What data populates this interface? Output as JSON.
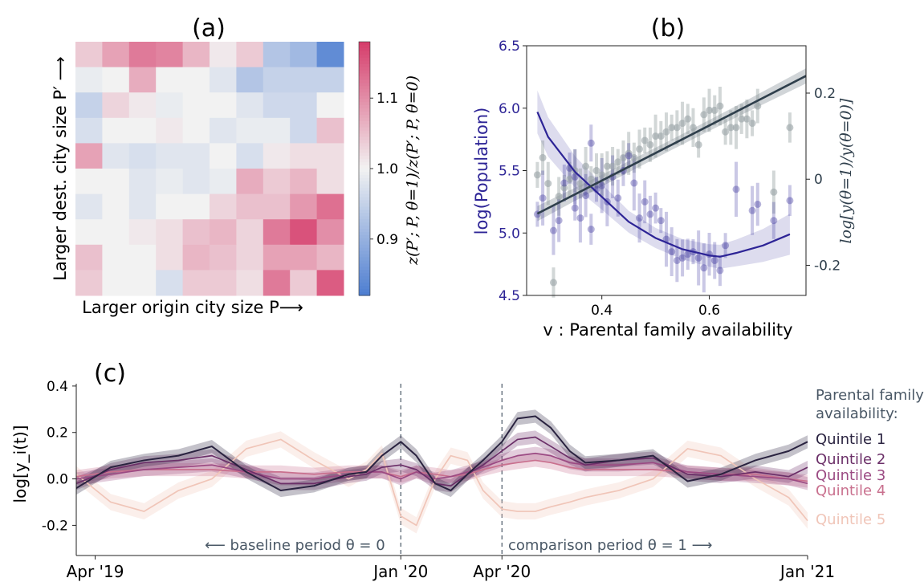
{
  "chart_data": [
    {
      "panel": "(a)",
      "type": "heatmap",
      "title": "(a)",
      "xlabel": "Larger origin city size P⟶",
      "ylabel": "Larger dest. city size P′ ⟶",
      "colorbar": {
        "label": "z(P′; P, θ=1)/z(P′; P, θ=0)",
        "range": [
          0.82,
          1.18
        ],
        "ticks": [
          0.9,
          1.0,
          1.1
        ],
        "tick_labels": [
          "0.9",
          "1.0",
          "1.1"
        ],
        "low_color": "#4f7fd1",
        "mid_color": "#f2f2f2",
        "high_color": "#d63e6c"
      },
      "rows_top_to_bottom": [
        [
          1.04,
          1.08,
          1.12,
          1.11,
          1.06,
          1.01,
          1.04,
          0.93,
          0.91,
          0.84
        ],
        [
          0.99,
          1.0,
          1.07,
          1.0,
          1.0,
          0.98,
          0.93,
          0.95,
          0.95,
          0.95
        ],
        [
          0.95,
          1.03,
          1.01,
          0.99,
          1.0,
          1.0,
          0.98,
          0.96,
          0.96,
          1.0
        ],
        [
          0.97,
          1.0,
          1.0,
          1.01,
          1.0,
          0.98,
          0.99,
          0.99,
          0.96,
          1.05
        ],
        [
          1.08,
          0.98,
          0.97,
          0.98,
          0.98,
          1.0,
          0.97,
          1.01,
          1.02,
          1.02
        ],
        [
          1.0,
          1.0,
          0.98,
          0.99,
          0.98,
          0.99,
          1.07,
          1.04,
          1.06,
          1.02
        ],
        [
          0.98,
          1.0,
          0.98,
          1.0,
          1.0,
          1.03,
          1.05,
          1.05,
          1.09,
          1.13
        ],
        [
          1.0,
          1.0,
          1.01,
          1.02,
          1.05,
          1.06,
          1.03,
          1.12,
          1.16,
          1.1
        ],
        [
          1.05,
          1.0,
          1.0,
          1.02,
          1.06,
          1.05,
          1.03,
          1.08,
          1.08,
          1.06
        ],
        [
          1.04,
          1.0,
          1.0,
          0.97,
          1.04,
          1.04,
          1.02,
          1.12,
          1.04,
          1.15
        ]
      ]
    },
    {
      "panel": "(b)",
      "type": "scatter",
      "title": "(b)",
      "xlabel": "v : Parental family availability",
      "ylabel_left": "log(Population)",
      "ylabel_right": "log[y(θ=1)/y(θ=0)]",
      "xlim": [
        0.26,
        0.78
      ],
      "xticks": [
        0.4,
        0.6
      ],
      "ylim_left": [
        4.5,
        6.5
      ],
      "yticks_left": [
        4.5,
        5.0,
        5.5,
        6.0,
        6.5
      ],
      "ylim_right": [
        -0.27,
        0.31
      ],
      "yticks_right": [
        -0.2,
        0,
        0.2
      ],
      "ytick_labels_right": [
        "-0.2",
        "0",
        "0.2"
      ],
      "population_color": "#2d2496",
      "ratio_color": "#2f3f4c",
      "series": [
        {
          "axis": "left",
          "points": [
            [
              0.28,
              5.15
            ],
            [
              0.29,
              5.28
            ],
            [
              0.31,
              5.02
            ],
            [
              0.32,
              5.1
            ],
            [
              0.33,
              5.4
            ],
            [
              0.34,
              5.52
            ],
            [
              0.35,
              5.2
            ],
            [
              0.35,
              5.45
            ],
            [
              0.36,
              5.12
            ],
            [
              0.37,
              5.3
            ],
            [
              0.38,
              5.72
            ],
            [
              0.38,
              5.03
            ],
            [
              0.39,
              5.35
            ],
            [
              0.4,
              5.38
            ],
            [
              0.41,
              5.25
            ],
            [
              0.42,
              5.45
            ],
            [
              0.43,
              5.28
            ],
            [
              0.44,
              5.5
            ],
            [
              0.45,
              5.62
            ],
            [
              0.46,
              5.4
            ],
            [
              0.47,
              5.12
            ],
            [
              0.48,
              5.25
            ],
            [
              0.49,
              5.15
            ],
            [
              0.5,
              5.2
            ],
            [
              0.51,
              5.1
            ],
            [
              0.52,
              4.95
            ],
            [
              0.53,
              4.85
            ],
            [
              0.54,
              4.78
            ],
            [
              0.55,
              4.8
            ],
            [
              0.56,
              4.83
            ],
            [
              0.57,
              4.85
            ],
            [
              0.58,
              4.8
            ],
            [
              0.59,
              4.72
            ],
            [
              0.6,
              4.83
            ],
            [
              0.61,
              4.78
            ],
            [
              0.62,
              4.7
            ],
            [
              0.63,
              4.9
            ],
            [
              0.65,
              5.35
            ],
            [
              0.68,
              5.18
            ],
            [
              0.69,
              5.23
            ],
            [
              0.72,
              5.1
            ],
            [
              0.75,
              5.26
            ]
          ],
          "fit": [
            [
              0.28,
              5.97
            ],
            [
              0.3,
              5.77
            ],
            [
              0.35,
              5.49
            ],
            [
              0.4,
              5.29
            ],
            [
              0.45,
              5.09
            ],
            [
              0.5,
              4.96
            ],
            [
              0.55,
              4.87
            ],
            [
              0.6,
              4.82
            ],
            [
              0.62,
              4.81
            ],
            [
              0.65,
              4.84
            ],
            [
              0.7,
              4.9
            ],
            [
              0.75,
              4.99
            ]
          ]
        },
        {
          "axis": "right",
          "points": [
            [
              0.28,
              0.01
            ],
            [
              0.29,
              0.05
            ],
            [
              0.3,
              -0.01
            ],
            [
              0.31,
              -0.24
            ],
            [
              0.32,
              -0.04
            ],
            [
              0.33,
              -0.02
            ],
            [
              0.34,
              0.0
            ],
            [
              0.35,
              0.02
            ],
            [
              0.36,
              -0.01
            ],
            [
              0.37,
              0.03
            ],
            [
              0.38,
              0.0
            ],
            [
              0.39,
              0.02
            ],
            [
              0.4,
              0.01
            ],
            [
              0.41,
              0.03
            ],
            [
              0.42,
              0.03
            ],
            [
              0.43,
              0.04
            ],
            [
              0.44,
              0.05
            ],
            [
              0.45,
              0.06
            ],
            [
              0.46,
              0.05
            ],
            [
              0.47,
              0.07
            ],
            [
              0.48,
              0.09
            ],
            [
              0.49,
              0.08
            ],
            [
              0.5,
              0.1
            ],
            [
              0.51,
              0.1
            ],
            [
              0.52,
              0.11
            ],
            [
              0.53,
              0.12
            ],
            [
              0.54,
              0.12
            ],
            [
              0.55,
              0.13
            ],
            [
              0.56,
              0.14
            ],
            [
              0.57,
              0.12
            ],
            [
              0.58,
              0.08
            ],
            [
              0.59,
              0.15
            ],
            [
              0.6,
              0.16
            ],
            [
              0.61,
              0.16
            ],
            [
              0.62,
              0.17
            ],
            [
              0.63,
              0.11
            ],
            [
              0.64,
              0.12
            ],
            [
              0.65,
              0.12
            ],
            [
              0.66,
              0.14
            ],
            [
              0.67,
              0.14
            ],
            [
              0.68,
              0.13
            ],
            [
              0.69,
              0.17
            ],
            [
              0.72,
              -0.03
            ],
            [
              0.75,
              0.12
            ]
          ],
          "fit": [
            [
              0.28,
              -0.08
            ],
            [
              0.78,
              0.24
            ]
          ]
        }
      ]
    },
    {
      "panel": "(c)",
      "type": "line",
      "title": "(c)",
      "ylabel": "log[y_i(t)]",
      "ylim": [
        -0.33,
        0.41
      ],
      "yticks": [
        -0.2,
        0.0,
        0.2,
        0.4
      ],
      "x_dates": [
        "2019-03-15",
        "2021-01-01"
      ],
      "x_ticks": [
        "2019-04-01",
        "2020-01-01",
        "2020-04-01",
        "2021-01-01"
      ],
      "x_tick_labels": [
        "Apr '19",
        "Jan '20",
        "Apr '20",
        "Jan '21"
      ],
      "vlines": [
        "2020-01-01",
        "2020-04-01"
      ],
      "annotations": [
        "⟵ baseline period θ = 0",
        "comparison period θ = 1 ⟶"
      ],
      "legend_title": "Parental family availability:",
      "legend_placement": "right",
      "x": [
        "2019-03-15",
        "2019-04-15",
        "2019-05-15",
        "2019-06-15",
        "2019-07-15",
        "2019-08-15",
        "2019-09-15",
        "2019-10-15",
        "2019-11-15",
        "2019-12-01",
        "2019-12-15",
        "2020-01-01",
        "2020-01-15",
        "2020-02-01",
        "2020-02-15",
        "2020-03-01",
        "2020-03-15",
        "2020-04-01",
        "2020-04-15",
        "2020-05-01",
        "2020-05-15",
        "2020-06-01",
        "2020-06-15",
        "2020-07-15",
        "2020-08-15",
        "2020-09-15",
        "2020-10-15",
        "2020-11-15",
        "2020-12-15",
        "2021-01-01"
      ],
      "series": [
        {
          "name": "Quintile 1",
          "color": "#2a2340",
          "values": [
            -0.04,
            0.05,
            0.08,
            0.1,
            0.14,
            0.03,
            -0.05,
            -0.03,
            0.02,
            0.03,
            0.1,
            0.16,
            0.1,
            -0.02,
            -0.05,
            0.02,
            0.08,
            0.16,
            0.26,
            0.27,
            0.22,
            0.12,
            0.07,
            0.08,
            0.1,
            -0.01,
            0.02,
            0.08,
            0.12,
            0.16
          ]
        },
        {
          "name": "Quintile 2",
          "color": "#6b2f68",
          "values": [
            -0.02,
            0.04,
            0.07,
            0.08,
            0.1,
            0.04,
            -0.02,
            -0.02,
            0.01,
            0.02,
            0.05,
            0.06,
            0.04,
            -0.02,
            -0.03,
            0.02,
            0.06,
            0.12,
            0.17,
            0.18,
            0.14,
            0.09,
            0.06,
            0.08,
            0.09,
            0.02,
            0.01,
            0.03,
            0.01,
            0.05
          ]
        },
        {
          "name": "Quintile 3",
          "color": "#9b4a83",
          "values": [
            0.0,
            0.02,
            0.04,
            0.05,
            0.06,
            0.03,
            0.0,
            0.0,
            0.02,
            0.03,
            0.03,
            0.0,
            0.03,
            0.0,
            0.01,
            0.03,
            0.05,
            0.08,
            0.1,
            0.11,
            0.1,
            0.07,
            0.06,
            0.06,
            0.07,
            0.03,
            0.02,
            0.01,
            0.0,
            -0.02
          ]
        },
        {
          "name": "Quintile 4",
          "color": "#c9708e",
          "values": [
            0.01,
            0.03,
            0.04,
            0.04,
            0.04,
            0.03,
            0.03,
            0.02,
            0.03,
            0.03,
            0.03,
            0.01,
            0.03,
            0.02,
            0.01,
            0.02,
            0.04,
            0.06,
            0.07,
            0.08,
            0.07,
            0.05,
            0.04,
            0.04,
            0.04,
            0.03,
            0.02,
            0.02,
            0.0,
            -0.01
          ]
        },
        {
          "name": "Quintile 5",
          "color": "#f0c5b8",
          "values": [
            0.02,
            -0.1,
            -0.14,
            -0.05,
            0.0,
            0.13,
            0.17,
            0.08,
            0.0,
            0.04,
            0.11,
            -0.16,
            -0.2,
            0.0,
            0.1,
            0.08,
            -0.05,
            -0.13,
            -0.14,
            -0.14,
            -0.12,
            -0.1,
            -0.08,
            -0.05,
            0.0,
            0.13,
            0.1,
            0.0,
            -0.08,
            -0.18
          ]
        }
      ]
    }
  ]
}
